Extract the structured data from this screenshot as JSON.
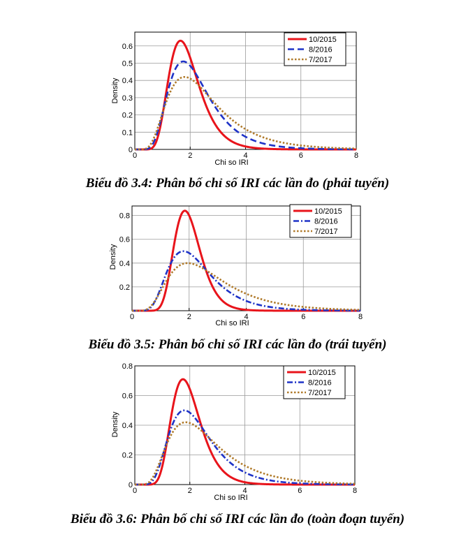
{
  "chart_data": [
    {
      "type": "line",
      "title": "",
      "xlabel": "Chi so IRI",
      "ylabel": "Density",
      "xlim": [
        0,
        8
      ],
      "ylim": [
        0,
        0.68
      ],
      "xticks": [
        "0",
        "2",
        "4",
        "6",
        "8"
      ],
      "yticks": [
        "0",
        "0.1",
        "0.2",
        "0.3",
        "0.4",
        "0.5",
        "0.6"
      ],
      "ytick_values": [
        0,
        0.1,
        0.2,
        0.3,
        0.4,
        0.5,
        0.6
      ],
      "legend_position": "top-right",
      "series": [
        {
          "name": "10/2015",
          "color": "#e8141b",
          "style": "solid",
          "peak_x": 1.65,
          "peak_y": 0.63,
          "sigma": 0.33
        },
        {
          "name": "8/2016",
          "color": "#1f33c7",
          "style": "dashed",
          "peak_x": 1.75,
          "peak_y": 0.51,
          "sigma": 0.42
        },
        {
          "name": "7/2017",
          "color": "#b07a2a",
          "style": "dotted",
          "peak_x": 1.8,
          "peak_y": 0.42,
          "sigma": 0.5
        }
      ],
      "caption": "Biểu đồ 3.4: Phân bố chỉ số IRI các lần đo (phải tuyến)"
    },
    {
      "type": "line",
      "title": "",
      "xlabel": "Chi so IRI",
      "ylabel": "Density",
      "xlim": [
        0,
        8
      ],
      "ylim": [
        0,
        0.88
      ],
      "xticks": [
        "0",
        "2",
        "4",
        "6",
        "8"
      ],
      "yticks": [
        "0.2",
        "0.4",
        "0.6",
        "0.8"
      ],
      "ytick_values": [
        0.2,
        0.4,
        0.6,
        0.8
      ],
      "legend_position": "top-right",
      "series": [
        {
          "name": "10/2015",
          "color": "#e8141b",
          "style": "solid",
          "peak_x": 1.85,
          "peak_y": 0.84,
          "sigma": 0.25
        },
        {
          "name": "8/2016",
          "color": "#1f33c7",
          "style": "dashdot",
          "peak_x": 1.8,
          "peak_y": 0.5,
          "sigma": 0.42
        },
        {
          "name": "7/2017",
          "color": "#b07a2a",
          "style": "dotted",
          "peak_x": 1.95,
          "peak_y": 0.4,
          "sigma": 0.5
        }
      ],
      "caption": "Biểu đồ 3.5: Phân bố chỉ số IRI các lần đo (trái tuyến)"
    },
    {
      "type": "line",
      "title": "",
      "xlabel": "Chi so IRI",
      "ylabel": "Density",
      "xlim": [
        0,
        8
      ],
      "ylim": [
        0,
        0.8
      ],
      "xticks": [
        "0",
        "2",
        "4",
        "6",
        "8"
      ],
      "yticks": [
        "0",
        "0.2",
        "0.4",
        "0.6",
        "0.8"
      ],
      "ytick_values": [
        0,
        0.2,
        0.4,
        0.6,
        0.8
      ],
      "legend_position": "top-right",
      "series": [
        {
          "name": "10/2015",
          "color": "#e8141b",
          "style": "solid",
          "peak_x": 1.75,
          "peak_y": 0.71,
          "sigma": 0.3
        },
        {
          "name": "8/2016",
          "color": "#1f33c7",
          "style": "dashdot",
          "peak_x": 1.8,
          "peak_y": 0.5,
          "sigma": 0.42
        },
        {
          "name": "7/2017",
          "color": "#b07a2a",
          "style": "dotted",
          "peak_x": 1.85,
          "peak_y": 0.42,
          "sigma": 0.5
        }
      ],
      "caption": "Biểu đồ 3.6: Phân bố chỉ số IRI các lần đo (toàn đoạn tuyến)"
    }
  ]
}
